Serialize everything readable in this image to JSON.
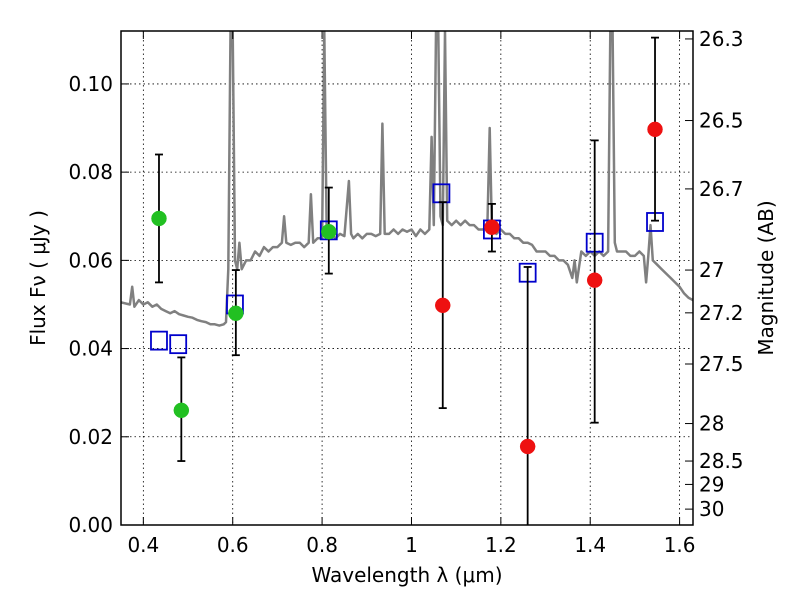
{
  "chart_data": {
    "type": "scatter",
    "xlabel": "Wavelength  λ (μm)",
    "ylabel": "Flux  Fν  ( μJy )",
    "ylabel_right": "Magnitude (AB)",
    "xlim": [
      0.35,
      1.63
    ],
    "ylim": [
      0.0,
      0.112
    ],
    "grid": true,
    "x_ticks": [
      0.4,
      0.6,
      0.8,
      1.0,
      1.2,
      1.4,
      1.6
    ],
    "x_tick_labels": [
      "0.4",
      "0.6",
      "0.8",
      "1",
      "1.2",
      "1.4",
      "1.6"
    ],
    "y_ticks": [
      0.0,
      0.02,
      0.04,
      0.06,
      0.08,
      0.1
    ],
    "y_tick_labels": [
      "0.00",
      "0.02",
      "0.04",
      "0.06",
      "0.08",
      "0.10"
    ],
    "mag_ticks": [
      {
        "label": "26.3",
        "flux": 0.1102
      },
      {
        "label": "26.5",
        "flux": 0.0917
      },
      {
        "label": "26.7",
        "flux": 0.0762
      },
      {
        "label": "27",
        "flux": 0.0578
      },
      {
        "label": "27.2",
        "flux": 0.0481
      },
      {
        "label": "27.5",
        "flux": 0.0365
      },
      {
        "label": "28",
        "flux": 0.023
      },
      {
        "label": "28.5",
        "flux": 0.0145
      },
      {
        "label": "29",
        "flux": 0.0092
      },
      {
        "label": "30",
        "flux": 0.0036
      }
    ],
    "series": [
      {
        "name": "model_spectrum",
        "kind": "line",
        "color": "#808080",
        "points": [
          [
            0.35,
            0.0505
          ],
          [
            0.37,
            0.05
          ],
          [
            0.375,
            0.054
          ],
          [
            0.38,
            0.0495
          ],
          [
            0.39,
            0.051
          ],
          [
            0.4,
            0.05
          ],
          [
            0.41,
            0.0505
          ],
          [
            0.42,
            0.0495
          ],
          [
            0.43,
            0.05
          ],
          [
            0.44,
            0.049
          ],
          [
            0.45,
            0.0485
          ],
          [
            0.46,
            0.048
          ],
          [
            0.47,
            0.0485
          ],
          [
            0.48,
            0.0478
          ],
          [
            0.49,
            0.0475
          ],
          [
            0.5,
            0.0472
          ],
          [
            0.51,
            0.047
          ],
          [
            0.52,
            0.0465
          ],
          [
            0.53,
            0.0462
          ],
          [
            0.54,
            0.046
          ],
          [
            0.55,
            0.0455
          ],
          [
            0.56,
            0.0455
          ],
          [
            0.57,
            0.0452
          ],
          [
            0.58,
            0.0455
          ],
          [
            0.585,
            0.046
          ],
          [
            0.59,
            0.058
          ],
          [
            0.595,
            0.112
          ],
          [
            0.6,
            0.112
          ],
          [
            0.605,
            0.06
          ],
          [
            0.61,
            0.058
          ],
          [
            0.615,
            0.064
          ],
          [
            0.62,
            0.058
          ],
          [
            0.63,
            0.06
          ],
          [
            0.64,
            0.06
          ],
          [
            0.65,
            0.062
          ],
          [
            0.66,
            0.061
          ],
          [
            0.67,
            0.063
          ],
          [
            0.68,
            0.062
          ],
          [
            0.69,
            0.063
          ],
          [
            0.7,
            0.063
          ],
          [
            0.71,
            0.064
          ],
          [
            0.715,
            0.07
          ],
          [
            0.72,
            0.064
          ],
          [
            0.73,
            0.0635
          ],
          [
            0.74,
            0.064
          ],
          [
            0.75,
            0.064
          ],
          [
            0.76,
            0.063
          ],
          [
            0.77,
            0.064
          ],
          [
            0.775,
            0.075
          ],
          [
            0.78,
            0.064
          ],
          [
            0.79,
            0.065
          ],
          [
            0.8,
            0.065
          ],
          [
            0.805,
            0.112
          ],
          [
            0.81,
            0.068
          ],
          [
            0.815,
            0.066
          ],
          [
            0.82,
            0.066
          ],
          [
            0.83,
            0.065
          ],
          [
            0.84,
            0.066
          ],
          [
            0.85,
            0.0655
          ],
          [
            0.86,
            0.078
          ],
          [
            0.865,
            0.066
          ],
          [
            0.87,
            0.065
          ],
          [
            0.88,
            0.066
          ],
          [
            0.89,
            0.065
          ],
          [
            0.9,
            0.066
          ],
          [
            0.91,
            0.066
          ],
          [
            0.92,
            0.0655
          ],
          [
            0.93,
            0.066
          ],
          [
            0.935,
            0.091
          ],
          [
            0.94,
            0.066
          ],
          [
            0.95,
            0.066
          ],
          [
            0.96,
            0.067
          ],
          [
            0.97,
            0.066
          ],
          [
            0.98,
            0.067
          ],
          [
            0.99,
            0.0665
          ],
          [
            1.0,
            0.067
          ],
          [
            1.01,
            0.0655
          ],
          [
            1.02,
            0.067
          ],
          [
            1.03,
            0.066
          ],
          [
            1.04,
            0.067
          ],
          [
            1.045,
            0.088
          ],
          [
            1.05,
            0.068
          ],
          [
            1.055,
            0.112
          ],
          [
            1.06,
            0.112
          ],
          [
            1.065,
            0.07
          ],
          [
            1.07,
            0.068
          ],
          [
            1.075,
            0.112
          ],
          [
            1.08,
            0.069
          ],
          [
            1.09,
            0.068
          ],
          [
            1.1,
            0.069
          ],
          [
            1.11,
            0.068
          ],
          [
            1.12,
            0.069
          ],
          [
            1.13,
            0.068
          ],
          [
            1.14,
            0.068
          ],
          [
            1.15,
            0.067
          ],
          [
            1.16,
            0.067
          ],
          [
            1.17,
            0.068
          ],
          [
            1.175,
            0.09
          ],
          [
            1.18,
            0.067
          ],
          [
            1.19,
            0.066
          ],
          [
            1.2,
            0.067
          ],
          [
            1.21,
            0.066
          ],
          [
            1.22,
            0.066
          ],
          [
            1.23,
            0.065
          ],
          [
            1.24,
            0.065
          ],
          [
            1.25,
            0.064
          ],
          [
            1.26,
            0.064
          ],
          [
            1.27,
            0.0635
          ],
          [
            1.28,
            0.062
          ],
          [
            1.29,
            0.062
          ],
          [
            1.3,
            0.062
          ],
          [
            1.31,
            0.061
          ],
          [
            1.32,
            0.061
          ],
          [
            1.33,
            0.06
          ],
          [
            1.34,
            0.06
          ],
          [
            1.35,
            0.059
          ],
          [
            1.36,
            0.056
          ],
          [
            1.365,
            0.06
          ],
          [
            1.37,
            0.055
          ],
          [
            1.38,
            0.062
          ],
          [
            1.39,
            0.061
          ],
          [
            1.4,
            0.062
          ],
          [
            1.41,
            0.061
          ],
          [
            1.42,
            0.062
          ],
          [
            1.43,
            0.061
          ],
          [
            1.44,
            0.062
          ],
          [
            1.445,
            0.112
          ],
          [
            1.45,
            0.112
          ],
          [
            1.455,
            0.064
          ],
          [
            1.46,
            0.062
          ],
          [
            1.47,
            0.062
          ],
          [
            1.48,
            0.062
          ],
          [
            1.49,
            0.061
          ],
          [
            1.5,
            0.061
          ],
          [
            1.51,
            0.062
          ],
          [
            1.52,
            0.061
          ],
          [
            1.525,
            0.055
          ],
          [
            1.53,
            0.061
          ],
          [
            1.535,
            0.068
          ],
          [
            1.54,
            0.06
          ],
          [
            1.55,
            0.059
          ],
          [
            1.56,
            0.058
          ],
          [
            1.57,
            0.057
          ],
          [
            1.58,
            0.056
          ],
          [
            1.59,
            0.055
          ],
          [
            1.6,
            0.054
          ],
          [
            1.61,
            0.0525
          ],
          [
            1.62,
            0.0515
          ],
          [
            1.63,
            0.051
          ]
        ]
      },
      {
        "name": "observed_green",
        "kind": "errorbar",
        "color": "#22c022",
        "marker": "circle",
        "points": [
          {
            "x": 0.435,
            "y": 0.0695,
            "lo": 0.055,
            "hi": 0.084
          },
          {
            "x": 0.485,
            "y": 0.026,
            "lo": 0.0145,
            "hi": 0.038
          },
          {
            "x": 0.607,
            "y": 0.048,
            "lo": 0.0385,
            "hi": 0.0578
          },
          {
            "x": 0.815,
            "y": 0.0665,
            "lo": 0.057,
            "hi": 0.0765
          }
        ]
      },
      {
        "name": "observed_red",
        "kind": "errorbar",
        "color": "#ee1111",
        "marker": "circle",
        "points": [
          {
            "x": 1.07,
            "y": 0.0498,
            "lo": 0.0265,
            "hi": 0.0732
          },
          {
            "x": 1.18,
            "y": 0.0675,
            "lo": 0.062,
            "hi": 0.0728
          },
          {
            "x": 1.26,
            "y": 0.0178,
            "lo": 0.0,
            "hi": 0.0585
          },
          {
            "x": 1.41,
            "y": 0.0555,
            "lo": 0.0232,
            "hi": 0.0872
          },
          {
            "x": 1.545,
            "y": 0.0897,
            "lo": 0.069,
            "hi": 0.1105
          }
        ]
      },
      {
        "name": "model_photometry",
        "kind": "scatter",
        "color": "#0000cc",
        "marker": "open-square",
        "points": [
          [
            0.435,
            0.0418
          ],
          [
            0.478,
            0.041
          ],
          [
            0.605,
            0.05
          ],
          [
            0.815,
            0.0668
          ],
          [
            1.067,
            0.0752
          ],
          [
            1.18,
            0.067
          ],
          [
            1.26,
            0.0572
          ],
          [
            1.41,
            0.064
          ],
          [
            1.545,
            0.0687
          ]
        ]
      }
    ]
  }
}
